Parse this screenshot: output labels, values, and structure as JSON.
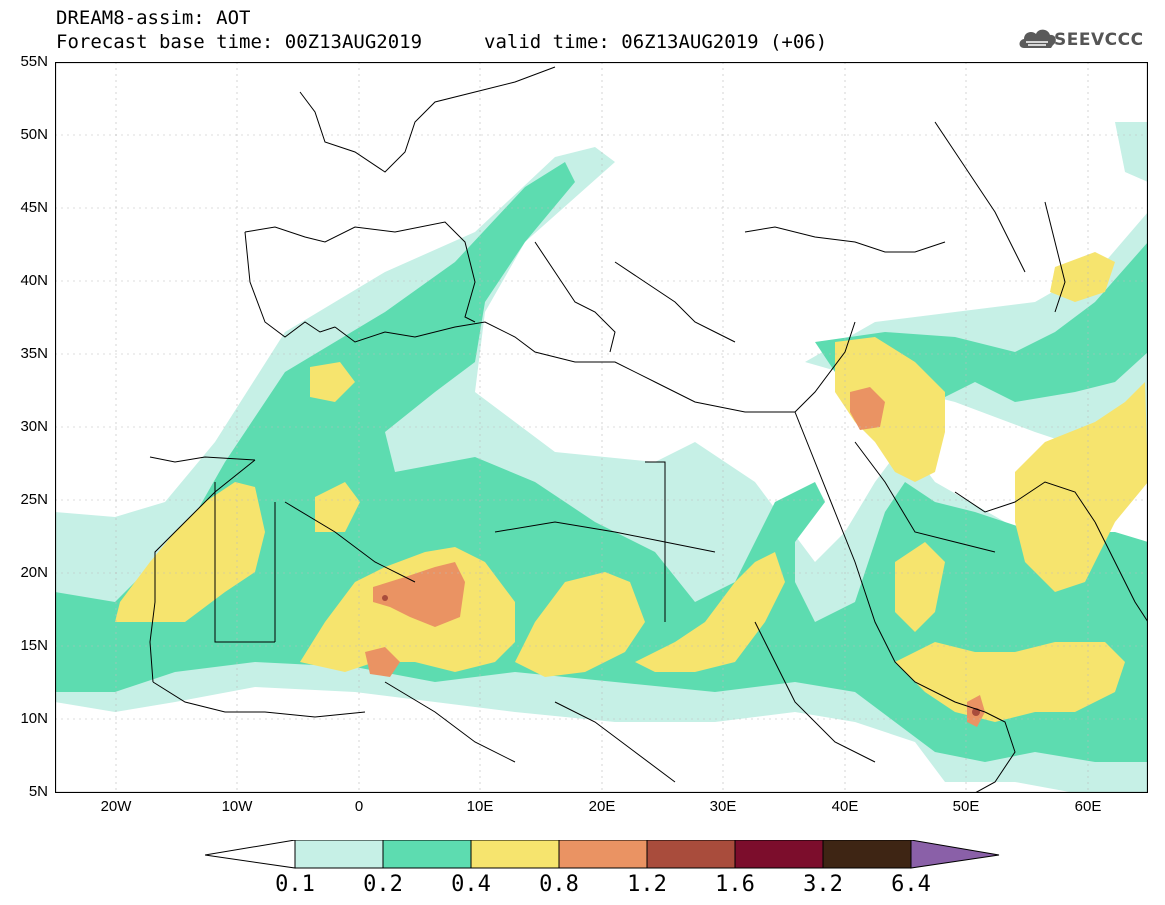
{
  "header": {
    "line1": "DREAM8-assim: AOT",
    "line2": "Forecast base time: 00Z13AUG2019",
    "valid": "valid time: 06Z13AUG2019 (+06)",
    "logo_text": "SEEVCCC",
    "logo_icon": "cloud-icon"
  },
  "map": {
    "variable": "AOT",
    "lat_labels": [
      "55N",
      "50N",
      "45N",
      "40N",
      "35N",
      "30N",
      "25N",
      "20N",
      "15N",
      "10N",
      "5N"
    ],
    "lon_labels": [
      "20W",
      "10W",
      "0",
      "10E",
      "20E",
      "30E",
      "40E",
      "50E",
      "60E"
    ]
  },
  "colorbar": {
    "levels": [
      "0.1",
      "0.2",
      "0.4",
      "0.8",
      "1.2",
      "1.6",
      "3.2",
      "6.4"
    ],
    "colors": [
      "#c6f0e6",
      "#5ddcb0",
      "#f6e46e",
      "#ea9363",
      "#a94c3c",
      "#7c0d2c",
      "#3e2514",
      "#8a60a8"
    ]
  }
}
